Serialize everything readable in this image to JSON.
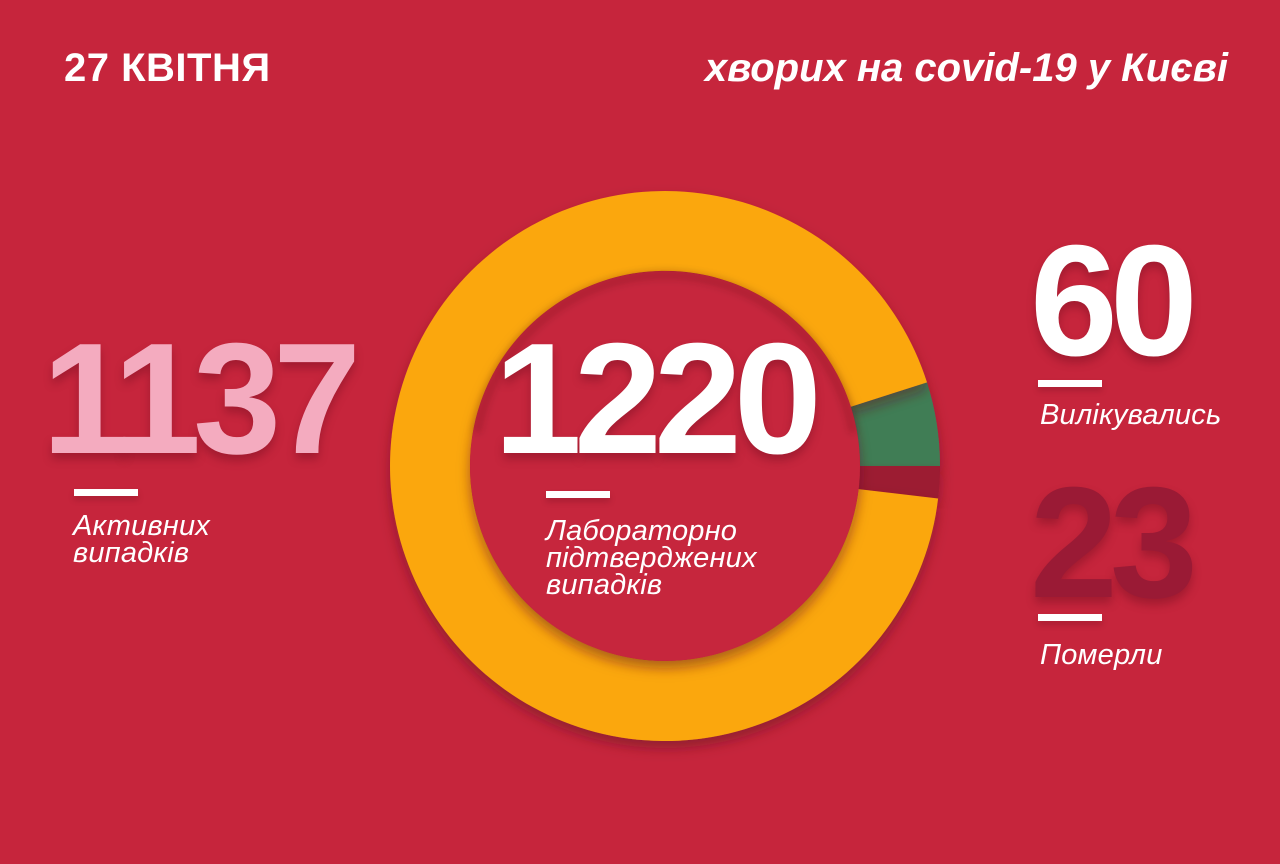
{
  "header": {
    "date": "27 КВІТНЯ",
    "title": "хворих на covid-19 у Києві"
  },
  "stats": {
    "active": {
      "value": "1137",
      "label": "Активних\nвипадків"
    },
    "confirmed": {
      "value": "1220",
      "label": "Лабораторно\nпідтверджених\nвипадків"
    },
    "recovered": {
      "value": "60",
      "label": "Вилікувались"
    },
    "deaths": {
      "value": "23",
      "label": "Померли"
    }
  },
  "colors": {
    "background": "#C6253C",
    "ring_orange": "#FBA70F",
    "recovered_green": "#3F7D55",
    "deaths_maroon": "#9C1B33",
    "active_number_pink": "#F4ABBF",
    "deaths_number": "#9A1A35",
    "text_white": "#FFFFFF"
  },
  "chart_data": {
    "type": "donut",
    "title": "хворих на covid-19 у Києві",
    "total": 1220,
    "center_value": 1220,
    "center_label": "Лабораторно підтверджених випадків",
    "series": [
      {
        "key": "active",
        "name": "Активних випадків",
        "value": 1137,
        "color": "#FBA70F"
      },
      {
        "key": "recovered",
        "name": "Вилікувались",
        "value": 60,
        "color": "#3F7D55"
      },
      {
        "key": "deaths",
        "name": "Померли",
        "value": 23,
        "color": "#9C1B33"
      }
    ],
    "legend_position": "none",
    "start_angle_deg": -17.7,
    "render_order": [
      1,
      2,
      0
    ]
  }
}
